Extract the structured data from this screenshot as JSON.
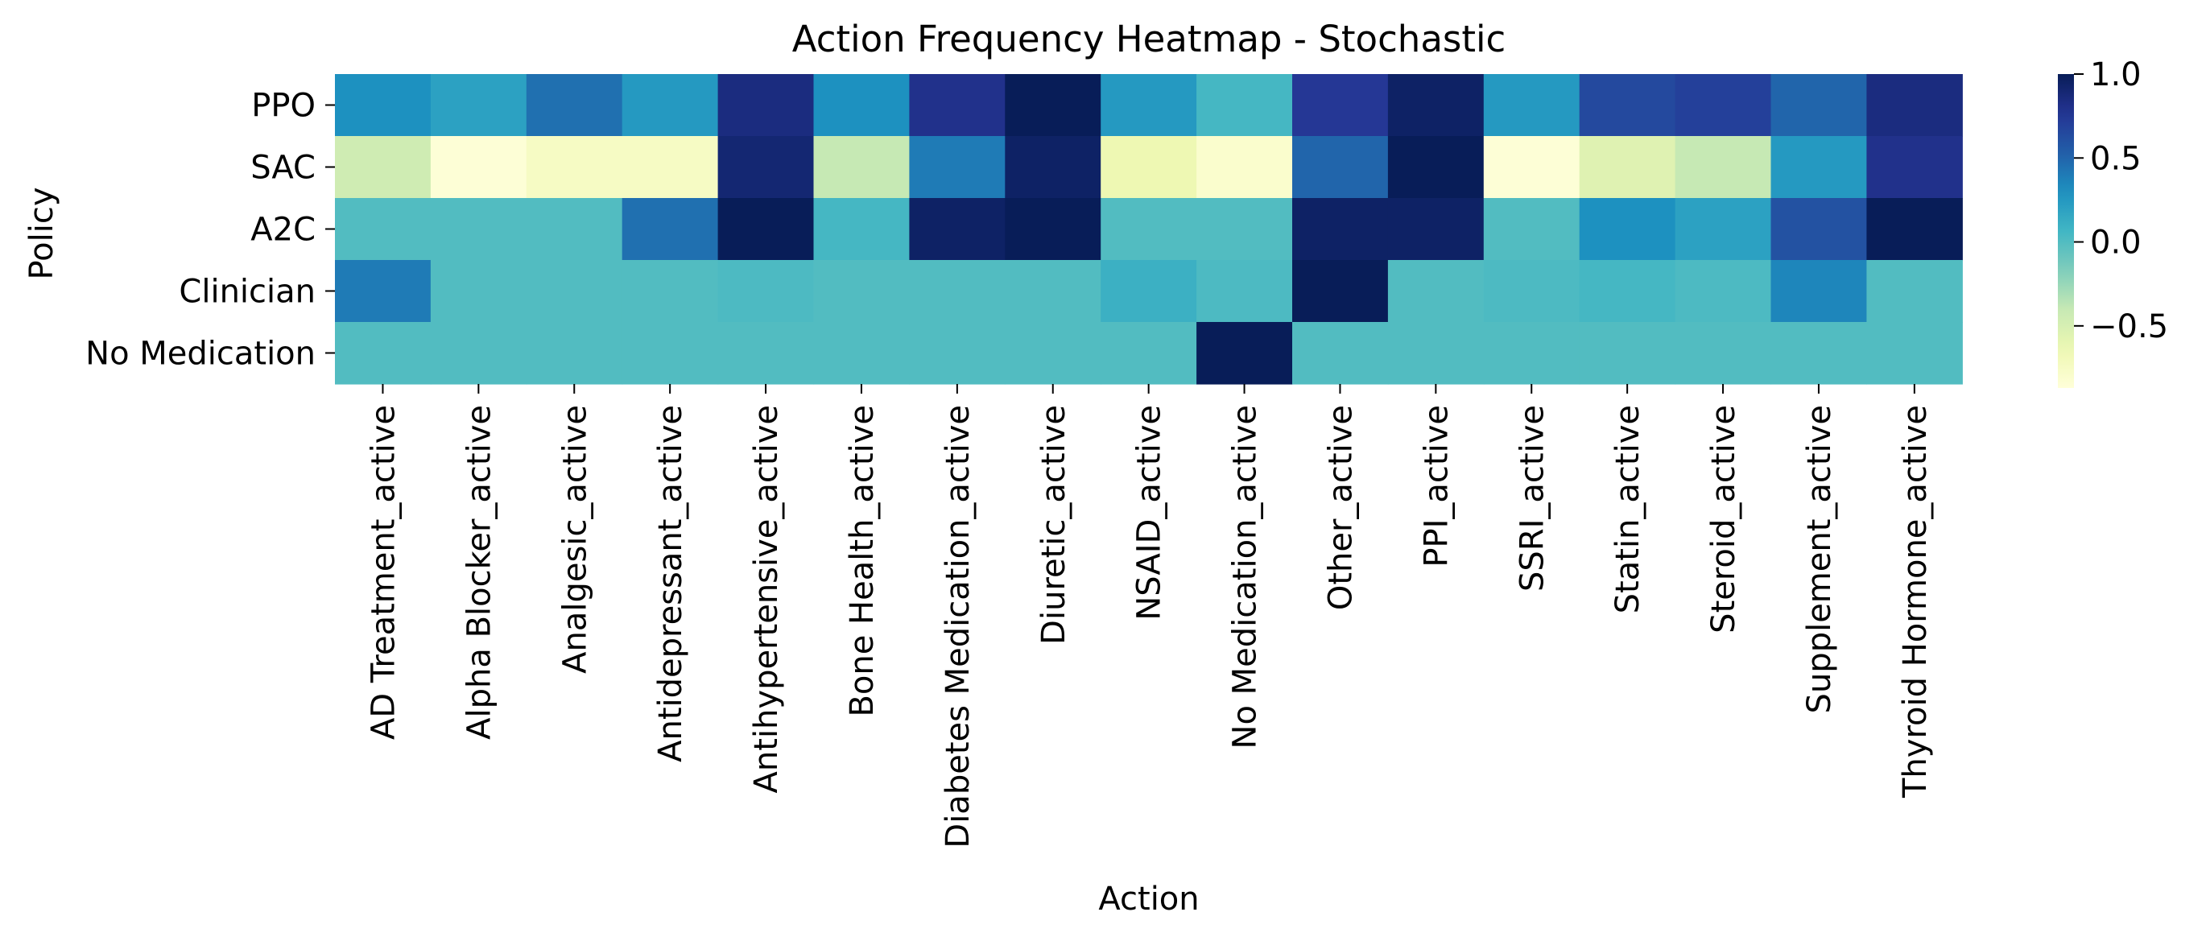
{
  "chart_data": {
    "type": "heatmap",
    "title": "Action Frequency Heatmap - Stochastic",
    "xlabel": "Action",
    "ylabel": "Policy",
    "rows": [
      "PPO",
      "SAC",
      "A2C",
      "Clinician",
      "No Medication"
    ],
    "columns": [
      "AD Treatment_active",
      "Alpha Blocker_active",
      "Analgesic_active",
      "Antidepressant_active",
      "Antihypertensive_active",
      "Bone Health_active",
      "Diabetes Medication_active",
      "Diuretic_active",
      "NSAID_active",
      "No Medication_active",
      "Other_active",
      "PPI_active",
      "SSRI_active",
      "Statin_active",
      "Steroid_active",
      "Supplement_active",
      "Thyroid Hormone_active"
    ],
    "values": [
      [
        0.3,
        0.2,
        0.45,
        0.25,
        0.85,
        0.3,
        0.8,
        1.0,
        0.25,
        0.05,
        0.75,
        0.95,
        0.25,
        0.65,
        0.7,
        0.5,
        0.85
      ],
      [
        -0.45,
        -0.85,
        -0.75,
        -0.75,
        0.9,
        -0.4,
        0.4,
        0.95,
        -0.65,
        -0.8,
        0.5,
        1.0,
        -0.85,
        -0.55,
        -0.4,
        0.25,
        0.8
      ],
      [
        0.0,
        0.0,
        0.0,
        0.45,
        1.0,
        0.05,
        0.95,
        1.0,
        0.0,
        0.0,
        0.95,
        0.95,
        0.0,
        0.3,
        0.2,
        0.6,
        1.0
      ],
      [
        0.4,
        0.0,
        0.0,
        0.0,
        0.02,
        0.0,
        0.0,
        0.0,
        0.1,
        0.02,
        1.0,
        0.0,
        0.02,
        0.05,
        0.02,
        0.35,
        0.0
      ],
      [
        0.0,
        0.0,
        0.0,
        0.0,
        0.0,
        0.0,
        0.0,
        0.0,
        0.0,
        1.0,
        0.0,
        0.0,
        0.0,
        0.0,
        0.0,
        0.0,
        0.0
      ]
    ],
    "vmin": -0.87,
    "vmax": 1.0,
    "colormap": "YlGnBu",
    "colorbar": {
      "ticks": [
        1.0,
        0.5,
        0.0,
        -0.5
      ],
      "tick_labels": [
        "1.0",
        "0.5",
        "0.0",
        "−0.5"
      ]
    },
    "grid": false,
    "legend": "colorbar-right"
  }
}
